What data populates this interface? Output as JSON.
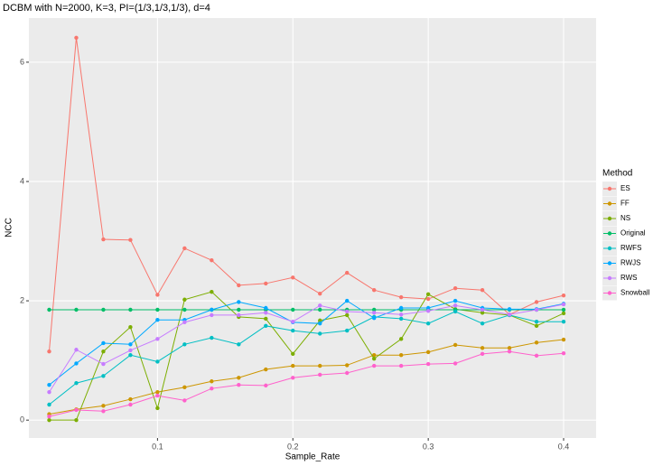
{
  "chart_data": {
    "type": "line",
    "title": "DCBM with N=2000, K=3, PI=(1/3,1/3,1/3), d=4",
    "x_label": "Sample_Rate",
    "y_label": "NCC",
    "legend_title": "Method",
    "x": [
      0.02,
      0.04,
      0.06,
      0.08,
      0.1,
      0.12,
      0.14,
      0.16,
      0.18,
      0.2,
      0.22,
      0.24,
      0.26,
      0.28,
      0.3,
      0.32,
      0.34,
      0.36,
      0.38,
      0.4
    ],
    "xlim": [
      0.005,
      0.424
    ],
    "ylim": [
      -0.3,
      6.74
    ],
    "xticks": [
      0.1,
      0.2,
      0.3,
      0.4
    ],
    "yticks": [
      0,
      2,
      4,
      6
    ],
    "grid": true,
    "legend": "right",
    "series": [
      {
        "name": "ES",
        "color": "#F8766D",
        "values": [
          1.15,
          6.41,
          3.03,
          3.02,
          2.1,
          2.88,
          2.68,
          2.26,
          2.29,
          2.39,
          2.12,
          2.47,
          2.18,
          2.06,
          2.03,
          2.21,
          2.18,
          1.77,
          1.98,
          2.09
        ]
      },
      {
        "name": "FF",
        "color": "#CD9600",
        "values": [
          0.1,
          0.18,
          0.24,
          0.35,
          0.47,
          0.55,
          0.65,
          0.71,
          0.85,
          0.91,
          0.91,
          0.92,
          1.09,
          1.09,
          1.14,
          1.26,
          1.21,
          1.21,
          1.3,
          1.35
        ]
      },
      {
        "name": "NS",
        "color": "#7CAE00",
        "values": [
          0,
          0,
          1.15,
          1.56,
          0.2,
          2.02,
          2.15,
          1.73,
          1.7,
          1.11,
          1.67,
          1.76,
          1.03,
          1.36,
          2.11,
          1.86,
          1.8,
          1.76,
          1.58,
          1.79
        ]
      },
      {
        "name": "Original",
        "color": "#00BE67",
        "values": [
          1.85,
          1.85,
          1.85,
          1.85,
          1.85,
          1.85,
          1.85,
          1.85,
          1.85,
          1.85,
          1.85,
          1.85,
          1.85,
          1.85,
          1.85,
          1.85,
          1.85,
          1.85,
          1.85,
          1.85
        ]
      },
      {
        "name": "RWFS",
        "color": "#00BFC4",
        "values": [
          0.26,
          0.62,
          0.74,
          1.09,
          0.98,
          1.27,
          1.38,
          1.27,
          1.58,
          1.5,
          1.45,
          1.5,
          1.73,
          1.7,
          1.62,
          1.82,
          1.62,
          1.76,
          1.65,
          1.65
        ]
      },
      {
        "name": "RWJS",
        "color": "#00A9FF",
        "values": [
          0.59,
          0.95,
          1.29,
          1.27,
          1.68,
          1.68,
          1.85,
          1.98,
          1.88,
          1.64,
          1.62,
          2.0,
          1.71,
          1.88,
          1.88,
          2.0,
          1.88,
          1.86,
          1.86,
          1.95
        ]
      },
      {
        "name": "RWS",
        "color": "#C77CFF",
        "values": [
          0.47,
          1.18,
          0.94,
          1.17,
          1.36,
          1.64,
          1.76,
          1.76,
          1.8,
          1.65,
          1.92,
          1.82,
          1.8,
          1.77,
          1.83,
          1.92,
          1.85,
          1.77,
          1.85,
          1.94
        ]
      },
      {
        "name": "Snowball",
        "color": "#FF61CC",
        "values": [
          0.06,
          0.17,
          0.15,
          0.26,
          0.41,
          0.33,
          0.53,
          0.59,
          0.58,
          0.71,
          0.76,
          0.79,
          0.91,
          0.91,
          0.94,
          0.95,
          1.11,
          1.15,
          1.08,
          1.12
        ]
      }
    ]
  }
}
